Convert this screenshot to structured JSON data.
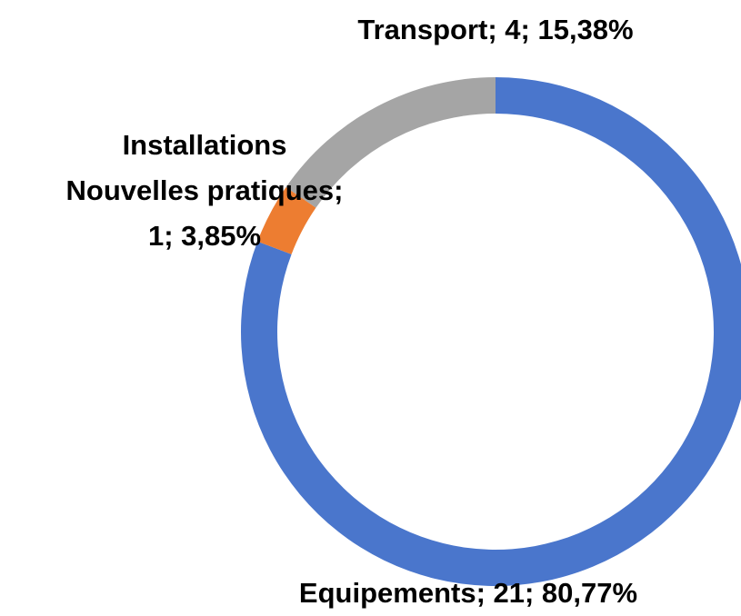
{
  "chart_data": {
    "type": "donut",
    "values": [
      21,
      1,
      4
    ],
    "value_labels": [
      [
        "Equipements; 21; 80,77%"
      ],
      [
        "Installations",
        "Nouvelles pratiques;",
        "1; 3,85%"
      ],
      [
        "Transport; 4; 15,38%"
      ]
    ],
    "colors": [
      "#4a76cc",
      "#ed7d31",
      "#a5a5a5"
    ]
  }
}
